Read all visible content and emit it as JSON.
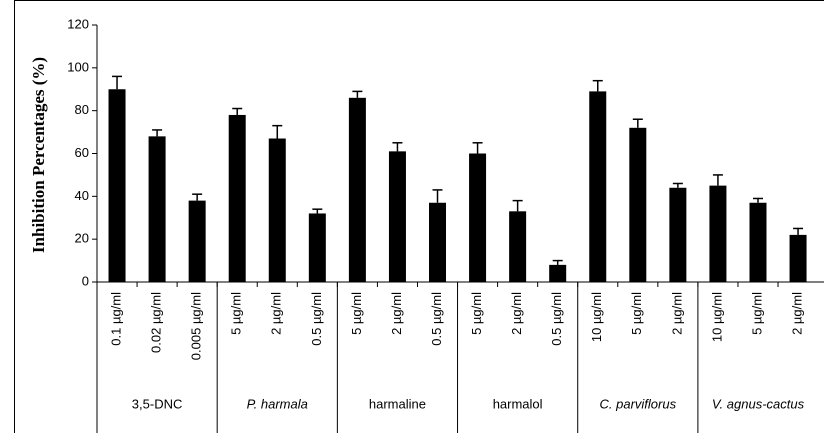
{
  "chart_data": {
    "type": "bar",
    "y_label": "Inhibition Percentages (%)",
    "ylim": [
      0,
      120
    ],
    "yticks": [
      0,
      20,
      40,
      60,
      80,
      100,
      120
    ],
    "color": "#000000",
    "groups": [
      {
        "name": "3,5-DNC",
        "categories": [
          "0.1 µg/ml",
          "0.02 µg/ml",
          "0.005 µg/ml"
        ],
        "values": [
          90,
          68,
          38
        ],
        "errors": [
          6,
          3,
          3
        ]
      },
      {
        "name": "P. harmala",
        "categories": [
          "5 µg/ml",
          "2 µg/ml",
          "0.5 µg/ml"
        ],
        "values": [
          78,
          67,
          32
        ],
        "errors": [
          3,
          6,
          2
        ]
      },
      {
        "name": "harmaline",
        "categories": [
          "5 µg/ml",
          "2 µg/ml",
          "0.5 µg/ml"
        ],
        "values": [
          86,
          61,
          37
        ],
        "errors": [
          3,
          4,
          6
        ]
      },
      {
        "name": "harmalol",
        "categories": [
          "5 µg/ml",
          "2 µg/ml",
          "0.5 µg/ml"
        ],
        "values": [
          60,
          33,
          8
        ],
        "errors": [
          5,
          5,
          2
        ]
      },
      {
        "name": "C. parviflorus",
        "categories": [
          "10 µg/ml",
          "5 µg/ml",
          "2 µg/ml"
        ],
        "values": [
          89,
          72,
          44
        ],
        "errors": [
          5,
          4,
          2
        ]
      },
      {
        "name": "V. agnus-cactus",
        "categories": [
          "10 µg/ml",
          "5 µg/ml",
          "2 µg/ml"
        ],
        "values": [
          45,
          37,
          22
        ],
        "errors": [
          5,
          2,
          3
        ]
      }
    ]
  }
}
